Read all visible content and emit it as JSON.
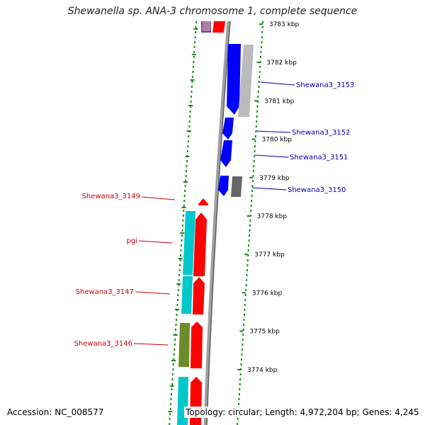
{
  "title": "Shewanella sp. ANA-3 chromosome 1, complete sequence",
  "footer": {
    "accession": "Accession: NC_008577",
    "topology": "Topology: circular; Length: 4,972,204 bp; Genes: 4,245"
  },
  "colors": {
    "forward": "#0000ff",
    "reverse": "#ff0000",
    "cyan": "#00c8cc",
    "olive": "#6b8c2a",
    "purple": "#5a4a99",
    "grey": "#bbbbbb",
    "dark_grey": "#666666",
    "ticks": "#1a8a1a",
    "backbone": "#808080",
    "label_forward": "#0000aa",
    "label_reverse": "#cc0000"
  },
  "kbp_ticks": [
    {
      "label": "3783 kbp"
    },
    {
      "label": "3782 kbp"
    },
    {
      "label": "3781 kbp"
    },
    {
      "label": "3780 kbp"
    },
    {
      "label": "3779 kbp"
    },
    {
      "label": "3778 kbp"
    },
    {
      "label": "3777 kbp"
    },
    {
      "label": "3776 kbp"
    },
    {
      "label": "3775 kbp"
    },
    {
      "label": "3774 kbp"
    }
  ],
  "gene_labels": {
    "forward": [
      {
        "name": "Shewana3_3153"
      },
      {
        "name": "Shewana3_3152"
      },
      {
        "name": "Shewana3_3151"
      },
      {
        "name": "Shewana3_3150"
      }
    ],
    "reverse": [
      {
        "name": "Shewana3_3149"
      },
      {
        "name": "pgi"
      },
      {
        "name": "Shewana3_3147"
      },
      {
        "name": "Shewana3_3146"
      }
    ]
  }
}
